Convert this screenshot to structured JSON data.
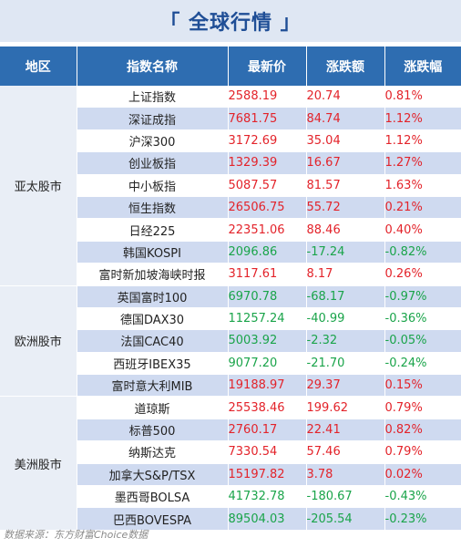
{
  "title": "「 全球行情 」",
  "headers": [
    "地区",
    "指数名称",
    "最新价",
    "涨跌额",
    "涨跌幅"
  ],
  "colors": {
    "up": "#e3232a",
    "down": "#1aa44a",
    "header_bg": "#2e6db1",
    "title": "#1f4e96"
  },
  "regions": [
    {
      "name": "亚太股市",
      "rows": [
        {
          "name": "上证指数",
          "price": "2588.19",
          "change": "20.74",
          "pct": "0.81%",
          "dir": "up"
        },
        {
          "name": "深证成指",
          "price": "7681.75",
          "change": "84.74",
          "pct": "1.12%",
          "dir": "up"
        },
        {
          "name": "沪深300",
          "price": "3172.69",
          "change": "35.04",
          "pct": "1.12%",
          "dir": "up"
        },
        {
          "name": "创业板指",
          "price": "1329.39",
          "change": "16.67",
          "pct": "1.27%",
          "dir": "up"
        },
        {
          "name": "中小板指",
          "price": "5087.57",
          "change": "81.57",
          "pct": "1.63%",
          "dir": "up"
        },
        {
          "name": "恒生指数",
          "price": "26506.75",
          "change": "55.72",
          "pct": "0.21%",
          "dir": "up"
        },
        {
          "name": "日经225",
          "price": "22351.06",
          "change": "88.46",
          "pct": "0.40%",
          "dir": "up"
        },
        {
          "name": "韩国KOSPI",
          "price": "2096.86",
          "change": "-17.24",
          "pct": "-0.82%",
          "dir": "down"
        },
        {
          "name": "富时新加坡海峡时报",
          "price": "3117.61",
          "change": "8.17",
          "pct": "0.26%",
          "dir": "up"
        }
      ]
    },
    {
      "name": "欧洲股市",
      "rows": [
        {
          "name": "英国富时100",
          "price": "6970.78",
          "change": "-68.17",
          "pct": "-0.97%",
          "dir": "down"
        },
        {
          "name": "德国DAX30",
          "price": "11257.24",
          "change": "-40.99",
          "pct": "-0.36%",
          "dir": "down"
        },
        {
          "name": "法国CAC40",
          "price": "5003.92",
          "change": "-2.32",
          "pct": "-0.05%",
          "dir": "down"
        },
        {
          "name": "西班牙IBEX35",
          "price": "9077.20",
          "change": "-21.70",
          "pct": "-0.24%",
          "dir": "down"
        },
        {
          "name": "富时意大利MIB",
          "price": "19188.97",
          "change": "29.37",
          "pct": "0.15%",
          "dir": "up"
        }
      ]
    },
    {
      "name": "美洲股市",
      "rows": [
        {
          "name": "道琼斯",
          "price": "25538.46",
          "change": "199.62",
          "pct": "0.79%",
          "dir": "up"
        },
        {
          "name": "标普500",
          "price": "2760.17",
          "change": "22.41",
          "pct": "0.82%",
          "dir": "up"
        },
        {
          "name": "纳斯达克",
          "price": "7330.54",
          "change": "57.46",
          "pct": "0.79%",
          "dir": "up"
        },
        {
          "name": "加拿大S&P/TSX",
          "price": "15197.82",
          "change": "3.78",
          "pct": "0.02%",
          "dir": "up"
        },
        {
          "name": "墨西哥BOLSA",
          "price": "41732.78",
          "change": "-180.67",
          "pct": "-0.43%",
          "dir": "down"
        },
        {
          "name": "巴西BOVESPA",
          "price": "89504.03",
          "change": "-205.54",
          "pct": "-0.23%",
          "dir": "down"
        }
      ]
    }
  ],
  "source": "数据来源：东方财富Choice数据"
}
